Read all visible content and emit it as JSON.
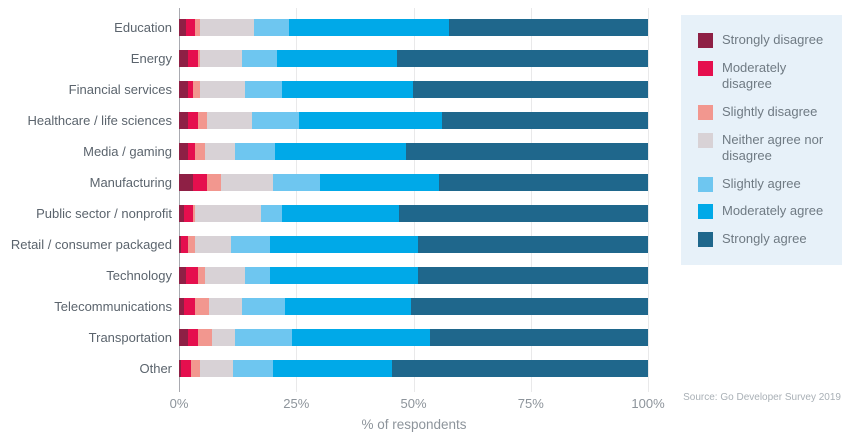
{
  "chart_data": {
    "type": "bar",
    "orientation": "horizontal",
    "stacked": true,
    "title": "",
    "xlabel": "% of respondents",
    "source": "Source: Go Developer Survey 2019",
    "xlim": [
      0,
      100
    ],
    "x_ticks": [
      "0%",
      "25%",
      "50%",
      "75%",
      "100%"
    ],
    "grid": true,
    "legend_position": "right",
    "legend_bg": "#e7f1f9",
    "categories": [
      "Education",
      "Energy",
      "Financial services",
      "Healthcare / life sciences",
      "Media / gaming",
      "Manufacturing",
      "Public sector / nonprofit",
      "Retail / consumer packaged",
      "Technology",
      "Telecommunications",
      "Transportation",
      "Other"
    ],
    "series": [
      {
        "name": "Strongly disagree",
        "color": "#8e2045",
        "values": [
          1.5,
          2,
          2,
          2,
          2,
          3,
          1,
          0.5,
          1.5,
          1,
          2,
          0.5
        ]
      },
      {
        "name": "Moderately disagree",
        "color": "#e50f4e",
        "values": [
          2,
          2,
          1,
          2,
          1.5,
          3,
          2,
          1.5,
          2.5,
          2.5,
          2,
          2
        ]
      },
      {
        "name": "Slightly disagree",
        "color": "#f2978f",
        "values": [
          1,
          0.5,
          1.5,
          2,
          2,
          3,
          0.5,
          1.5,
          1.5,
          3,
          3,
          2
        ]
      },
      {
        "name": "Neither agree nor disagree",
        "color": "#d8d2d6",
        "values": [
          11.5,
          9,
          9.5,
          9.5,
          6.5,
          11,
          14,
          7.5,
          8.5,
          7,
          5,
          7
        ]
      },
      {
        "name": "Slightly agree",
        "color": "#6ec6f0",
        "values": [
          7.5,
          7.5,
          8,
          10,
          8.5,
          10,
          4.5,
          8.5,
          5.5,
          9,
          12,
          8.5
        ]
      },
      {
        "name": "Moderately agree",
        "color": "#00a9e8",
        "values": [
          34,
          25.5,
          28,
          30.5,
          28,
          25.5,
          25,
          31.5,
          31.5,
          27,
          29.5,
          25.5
        ]
      },
      {
        "name": "Strongly agree",
        "color": "#1f678c",
        "values": [
          42.5,
          53.5,
          50,
          44,
          51.5,
          44.5,
          53,
          49,
          49,
          50.5,
          46.5,
          54.5
        ]
      }
    ]
  }
}
